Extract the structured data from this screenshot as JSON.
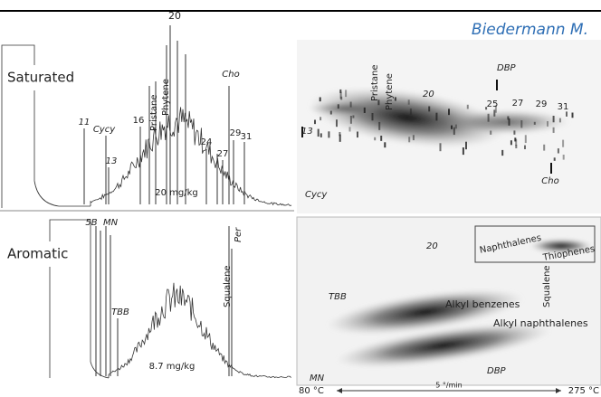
{
  "header": {
    "author": "Biedermann M."
  },
  "left": {
    "saturated": {
      "label": "Saturated",
      "peaks": [
        "11",
        "Cycy",
        "13",
        "16",
        "Pristane",
        "Phytene",
        "20",
        "24",
        "27",
        "29",
        "31",
        "Cho"
      ],
      "concentration": "20 mg/kg"
    },
    "aromatic": {
      "label": "Aromatic",
      "peaks": [
        "5B",
        "MN",
        "TBB",
        "Squalene",
        "Per"
      ],
      "concentration": "8.7 mg/kg"
    }
  },
  "right": {
    "top": {
      "labels": [
        "13",
        "Cycy",
        "Pristane",
        "Phytene",
        "20",
        "DBP",
        "25",
        "27",
        "29",
        "31",
        "Cho"
      ]
    },
    "bottom": {
      "labels": [
        "TBB",
        "MN",
        "20",
        "DBP",
        "Squalene",
        "Alkyl benzenes",
        "Alkyl naphthalenes",
        "Naphthalenes",
        "Thiophenes"
      ]
    }
  },
  "axis": {
    "start": "80 °C",
    "rate": "5 °/min",
    "end": "275 °C"
  }
}
